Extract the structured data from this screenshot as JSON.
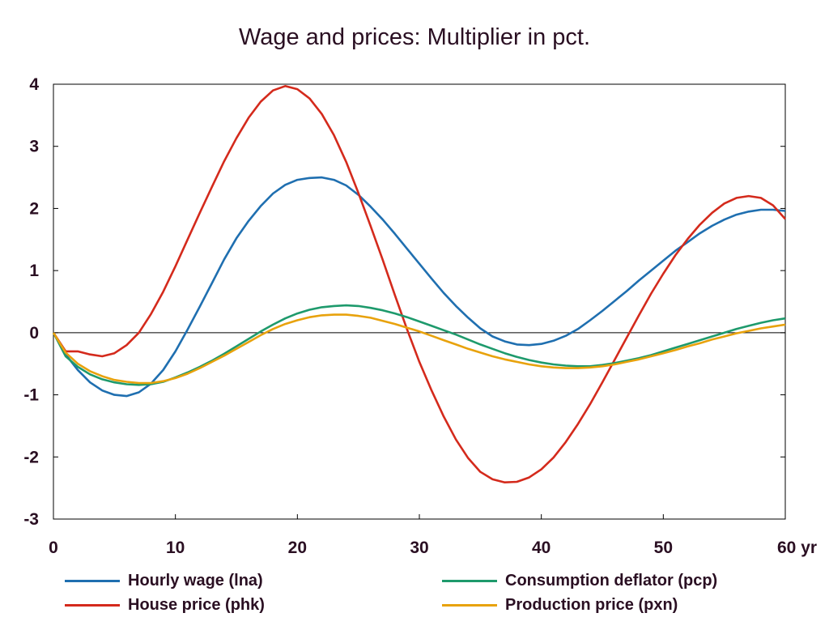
{
  "chart_data": {
    "type": "line",
    "title": "Wage and prices: Multiplier in pct.",
    "xlim": [
      0,
      60
    ],
    "ylim": [
      -3,
      4
    ],
    "x_ticks": [
      0,
      10,
      20,
      30,
      40,
      50,
      60
    ],
    "x_tick_labels": [
      "0",
      "10",
      "20",
      "30",
      "40",
      "50",
      "60 yr"
    ],
    "y_ticks": [
      -3,
      -2,
      -1,
      0,
      1,
      2,
      3,
      4
    ],
    "y_tick_labels": [
      "-3",
      "-2",
      "-1",
      "0",
      "1",
      "2",
      "3",
      "4"
    ],
    "zero_line": true,
    "grid": false,
    "legend_placement": "bottom",
    "x": [
      0,
      1,
      2,
      3,
      4,
      5,
      6,
      7,
      8,
      9,
      10,
      11,
      12,
      13,
      14,
      15,
      16,
      17,
      18,
      19,
      20,
      21,
      22,
      23,
      24,
      25,
      26,
      27,
      28,
      29,
      30,
      31,
      32,
      33,
      34,
      35,
      36,
      37,
      38,
      39,
      40,
      41,
      42,
      43,
      44,
      45,
      46,
      47,
      48,
      49,
      50,
      51,
      52,
      53,
      54,
      55,
      56,
      57,
      58,
      59,
      60
    ],
    "series": [
      {
        "name": "Hourly wage (lna)",
        "color": "#1f6fb0",
        "values": [
          0.0,
          -0.35,
          -0.6,
          -0.8,
          -0.93,
          -1.0,
          -1.02,
          -0.96,
          -0.82,
          -0.6,
          -0.3,
          0.05,
          0.42,
          0.8,
          1.18,
          1.52,
          1.8,
          2.04,
          2.24,
          2.38,
          2.46,
          2.49,
          2.5,
          2.46,
          2.37,
          2.22,
          2.03,
          1.82,
          1.59,
          1.35,
          1.11,
          0.87,
          0.64,
          0.43,
          0.24,
          0.07,
          -0.06,
          -0.14,
          -0.19,
          -0.2,
          -0.18,
          -0.13,
          -0.05,
          0.06,
          0.2,
          0.35,
          0.51,
          0.67,
          0.84,
          1.0,
          1.16,
          1.32,
          1.46,
          1.6,
          1.72,
          1.82,
          1.9,
          1.95,
          1.98,
          1.98,
          1.96
        ]
      },
      {
        "name": "House price (phk)",
        "color": "#d42a1c",
        "values": [
          0.0,
          -0.3,
          -0.3,
          -0.35,
          -0.38,
          -0.33,
          -0.2,
          0.0,
          0.3,
          0.66,
          1.07,
          1.5,
          1.93,
          2.35,
          2.76,
          3.13,
          3.46,
          3.72,
          3.9,
          3.97,
          3.92,
          3.77,
          3.52,
          3.18,
          2.75,
          2.25,
          1.72,
          1.17,
          0.6,
          0.05,
          -0.47,
          -0.93,
          -1.35,
          -1.72,
          -2.02,
          -2.24,
          -2.36,
          -2.41,
          -2.4,
          -2.33,
          -2.2,
          -2.01,
          -1.76,
          -1.47,
          -1.15,
          -0.8,
          -0.44,
          -0.08,
          0.28,
          0.63,
          0.95,
          1.25,
          1.51,
          1.74,
          1.93,
          2.08,
          2.17,
          2.2,
          2.17,
          2.05,
          1.83
        ]
      },
      {
        "name": "Consumption deflator (pcp)",
        "color": "#1e9a6c",
        "values": [
          0.0,
          -0.38,
          -0.55,
          -0.67,
          -0.75,
          -0.8,
          -0.83,
          -0.84,
          -0.83,
          -0.79,
          -0.72,
          -0.64,
          -0.55,
          -0.45,
          -0.34,
          -0.22,
          -0.1,
          0.02,
          0.13,
          0.23,
          0.31,
          0.37,
          0.41,
          0.43,
          0.44,
          0.43,
          0.4,
          0.36,
          0.31,
          0.25,
          0.18,
          0.11,
          0.04,
          -0.03,
          -0.11,
          -0.19,
          -0.26,
          -0.33,
          -0.39,
          -0.44,
          -0.48,
          -0.51,
          -0.53,
          -0.54,
          -0.54,
          -0.52,
          -0.49,
          -0.45,
          -0.41,
          -0.36,
          -0.3,
          -0.24,
          -0.18,
          -0.12,
          -0.06,
          0.0,
          0.06,
          0.11,
          0.16,
          0.2,
          0.23
        ]
      },
      {
        "name": "Production price (pxn)",
        "color": "#e8a20c",
        "values": [
          0.0,
          -0.32,
          -0.5,
          -0.62,
          -0.7,
          -0.76,
          -0.79,
          -0.81,
          -0.81,
          -0.78,
          -0.73,
          -0.66,
          -0.57,
          -0.47,
          -0.37,
          -0.26,
          -0.15,
          -0.04,
          0.06,
          0.14,
          0.2,
          0.25,
          0.28,
          0.29,
          0.29,
          0.27,
          0.24,
          0.19,
          0.14,
          0.08,
          0.02,
          -0.05,
          -0.12,
          -0.19,
          -0.26,
          -0.32,
          -0.38,
          -0.43,
          -0.47,
          -0.51,
          -0.54,
          -0.56,
          -0.57,
          -0.57,
          -0.56,
          -0.54,
          -0.51,
          -0.47,
          -0.43,
          -0.38,
          -0.33,
          -0.28,
          -0.22,
          -0.17,
          -0.11,
          -0.06,
          -0.01,
          0.03,
          0.07,
          0.1,
          0.13
        ]
      }
    ]
  }
}
